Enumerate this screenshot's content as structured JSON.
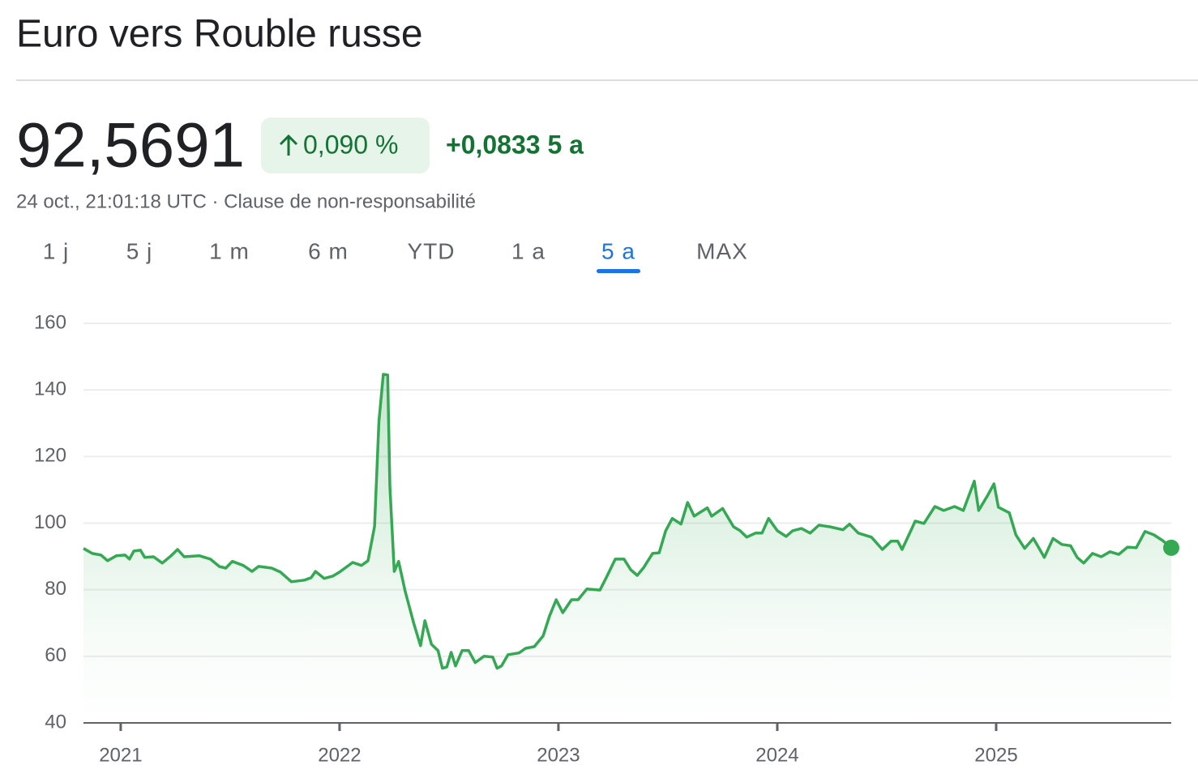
{
  "header": {
    "title": "Euro vers Rouble russe",
    "price": "92,5691",
    "change_percent": "0,090 %",
    "change_absolute": "+0,0833 5 a",
    "timestamp": "24 oct., 21:01:18 UTC · Clause de non-responsabilité"
  },
  "tabs": {
    "items": [
      "1 j",
      "5 j",
      "1 m",
      "6 m",
      "YTD",
      "1 a",
      "5 a",
      "MAX"
    ],
    "selected": 6
  },
  "chart_data": {
    "type": "line",
    "color": "#34a853",
    "x": [
      2020.83,
      2020.87,
      2020.91,
      2020.94,
      2020.98,
      2021.02,
      2021.04,
      2021.06,
      2021.09,
      2021.11,
      2021.15,
      2021.19,
      2021.23,
      2021.26,
      2021.29,
      2021.36,
      2021.41,
      2021.45,
      2021.48,
      2021.51,
      2021.56,
      2021.6,
      2021.63,
      2021.69,
      2021.73,
      2021.78,
      2021.84,
      2021.87,
      2021.89,
      2021.93,
      2021.97,
      2022.0,
      2022.06,
      2022.1,
      2022.13,
      2022.16,
      2022.18,
      2022.2,
      2022.22,
      2022.23,
      2022.25,
      2022.27,
      2022.3,
      2022.34,
      2022.37,
      2022.39,
      2022.42,
      2022.45,
      2022.47,
      2022.49,
      2022.51,
      2022.53,
      2022.56,
      2022.59,
      2022.62,
      2022.66,
      2022.7,
      2022.72,
      2022.74,
      2022.77,
      2022.82,
      2022.85,
      2022.89,
      2022.93,
      2022.96,
      2022.99,
      2023.02,
      2023.06,
      2023.09,
      2023.13,
      2023.19,
      2023.22,
      2023.26,
      2023.3,
      2023.33,
      2023.36,
      2023.39,
      2023.43,
      2023.46,
      2023.49,
      2023.52,
      2023.56,
      2023.59,
      2023.62,
      2023.68,
      2023.7,
      2023.75,
      2023.8,
      2023.83,
      2023.86,
      2023.9,
      2023.93,
      2023.96,
      2024.0,
      2024.04,
      2024.07,
      2024.11,
      2024.15,
      2024.19,
      2024.24,
      2024.3,
      2024.33,
      2024.37,
      2024.43,
      2024.48,
      2024.52,
      2024.55,
      2024.57,
      2024.61,
      2024.63,
      2024.67,
      2024.72,
      2024.76,
      2024.81,
      2024.85,
      2024.9,
      2024.92,
      2024.96,
      2024.99,
      2025.01,
      2025.06,
      2025.09,
      2025.13,
      2025.17,
      2025.22,
      2025.26,
      2025.3,
      2025.34,
      2025.37,
      2025.4,
      2025.44,
      2025.48,
      2025.52,
      2025.56,
      2025.6,
      2025.64,
      2025.68,
      2025.72,
      2025.76,
      2025.8
    ],
    "values": [
      92.4,
      90.9,
      90.4,
      88.7,
      90.2,
      90.4,
      89.2,
      91.6,
      91.9,
      89.7,
      89.9,
      88.0,
      90.2,
      92.1,
      89.9,
      90.2,
      89.2,
      87.0,
      86.5,
      88.5,
      87.3,
      85.5,
      87.0,
      86.5,
      85.3,
      82.4,
      82.9,
      83.6,
      85.5,
      83.4,
      84.1,
      85.3,
      88.2,
      87.3,
      88.7,
      99.0,
      130.6,
      144.7,
      144.5,
      111.1,
      85.5,
      88.5,
      79.5,
      69.7,
      63.2,
      70.7,
      63.6,
      61.7,
      56.4,
      56.8,
      61.2,
      57.1,
      61.7,
      61.7,
      58.1,
      60.0,
      59.8,
      56.4,
      57.1,
      60.5,
      61.0,
      62.4,
      62.9,
      66.1,
      72.2,
      77.0,
      73.1,
      77.0,
      77.0,
      80.2,
      79.9,
      83.8,
      89.2,
      89.2,
      86.0,
      84.3,
      86.7,
      90.9,
      91.1,
      97.7,
      101.4,
      99.7,
      106.2,
      102.1,
      104.6,
      102.1,
      104.4,
      98.9,
      97.7,
      95.8,
      97.0,
      97.0,
      101.4,
      97.7,
      96.0,
      97.7,
      98.4,
      97.0,
      99.4,
      98.9,
      98.0,
      99.7,
      97.0,
      95.8,
      92.1,
      94.6,
      94.6,
      92.1,
      97.7,
      100.6,
      99.9,
      105.0,
      103.8,
      105.0,
      103.8,
      112.6,
      103.8,
      108.2,
      111.8,
      104.8,
      103.1,
      96.5,
      92.4,
      95.4,
      89.7,
      95.4,
      93.6,
      93.2,
      89.7,
      88.0,
      90.9,
      89.9,
      91.4,
      90.6,
      92.8,
      92.6,
      97.5,
      96.5,
      94.8,
      92.6
    ],
    "xlim": [
      2020.83,
      2025.8
    ],
    "xticks": [
      2021,
      2022,
      2023,
      2024,
      2025
    ],
    "ylim": [
      40,
      160
    ],
    "yticks": [
      40,
      60,
      80,
      100,
      120,
      140,
      160
    ],
    "grid": true
  }
}
